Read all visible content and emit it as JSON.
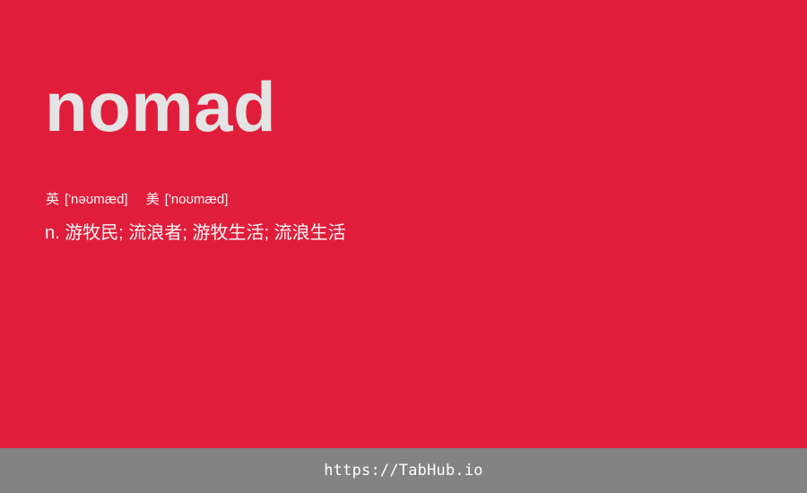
{
  "word": "nomad",
  "phonetics": {
    "uk": {
      "region": "英",
      "ipa": "['nəʊmæd]"
    },
    "us": {
      "region": "美",
      "ipa": "['noʊmæd]"
    }
  },
  "definition": "n. 游牧民; 流浪者; 游牧生活; 流浪生活",
  "footer": {
    "link_text": "https://TabHub.io"
  },
  "colors": {
    "card_background": "#e01e3c",
    "footer_background": "#838383",
    "word_text": "#e4e4e4"
  }
}
